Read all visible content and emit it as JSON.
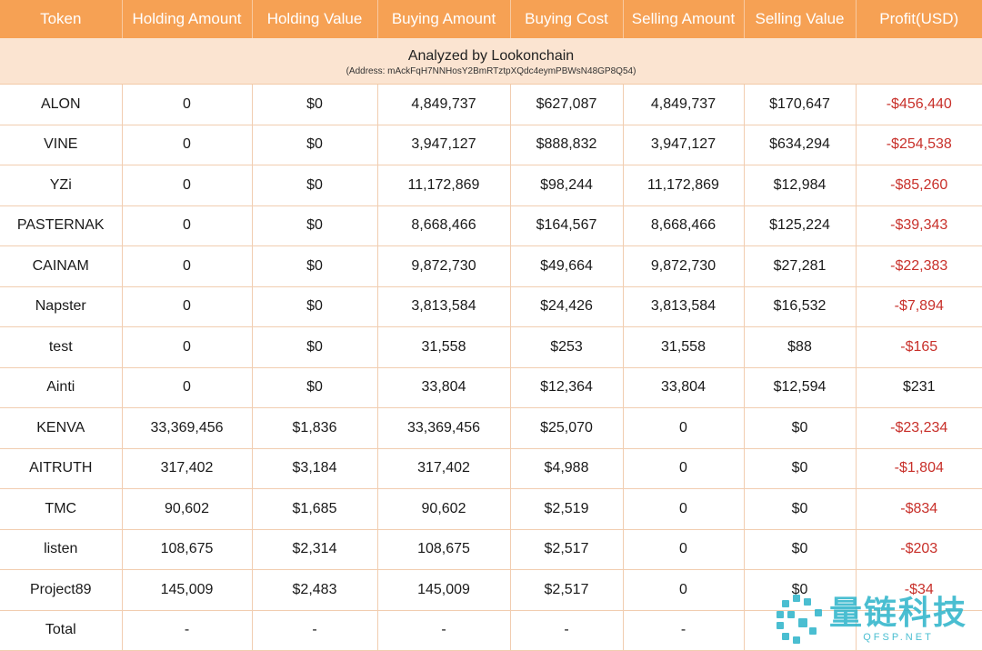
{
  "headers": [
    "Token",
    "Holding Amount",
    "Holding Value",
    "Buying Amount",
    "Buying Cost",
    "Selling Amount",
    "Selling Value",
    "Profit(USD)"
  ],
  "banner": {
    "title": "Analyzed by Lookonchain",
    "address": "(Address: mAckFqH7NNHosY2BmRTztpXQdc4eymPBWsN48GP8Q54)"
  },
  "rows": [
    {
      "token": "ALON",
      "holding_amount": "0",
      "holding_value": "$0",
      "buying_amount": "4,849,737",
      "buying_cost": "$627,087",
      "selling_amount": "4,849,737",
      "selling_value": "$170,647",
      "profit": "-$456,440"
    },
    {
      "token": "VINE",
      "holding_amount": "0",
      "holding_value": "$0",
      "buying_amount": "3,947,127",
      "buying_cost": "$888,832",
      "selling_amount": "3,947,127",
      "selling_value": "$634,294",
      "profit": "-$254,538"
    },
    {
      "token": "YZi",
      "holding_amount": "0",
      "holding_value": "$0",
      "buying_amount": "11,172,869",
      "buying_cost": "$98,244",
      "selling_amount": "11,172,869",
      "selling_value": "$12,984",
      "profit": "-$85,260"
    },
    {
      "token": "PASTERNAK",
      "holding_amount": "0",
      "holding_value": "$0",
      "buying_amount": "8,668,466",
      "buying_cost": "$164,567",
      "selling_amount": "8,668,466",
      "selling_value": "$125,224",
      "profit": "-$39,343"
    },
    {
      "token": "CAINAM",
      "holding_amount": "0",
      "holding_value": "$0",
      "buying_amount": "9,872,730",
      "buying_cost": "$49,664",
      "selling_amount": "9,872,730",
      "selling_value": "$27,281",
      "profit": "-$22,383"
    },
    {
      "token": "Napster",
      "holding_amount": "0",
      "holding_value": "$0",
      "buying_amount": "3,813,584",
      "buying_cost": "$24,426",
      "selling_amount": "3,813,584",
      "selling_value": "$16,532",
      "profit": "-$7,894"
    },
    {
      "token": "test",
      "holding_amount": "0",
      "holding_value": "$0",
      "buying_amount": "31,558",
      "buying_cost": "$253",
      "selling_amount": "31,558",
      "selling_value": "$88",
      "profit": "-$165"
    },
    {
      "token": "Ainti",
      "holding_amount": "0",
      "holding_value": "$0",
      "buying_amount": "33,804",
      "buying_cost": "$12,364",
      "selling_amount": "33,804",
      "selling_value": "$12,594",
      "profit": "$231"
    },
    {
      "token": "KENVA",
      "holding_amount": "33,369,456",
      "holding_value": "$1,836",
      "buying_amount": "33,369,456",
      "buying_cost": "$25,070",
      "selling_amount": "0",
      "selling_value": "$0",
      "profit": "-$23,234"
    },
    {
      "token": "AITRUTH",
      "holding_amount": "317,402",
      "holding_value": "$3,184",
      "buying_amount": "317,402",
      "buying_cost": "$4,988",
      "selling_amount": "0",
      "selling_value": "$0",
      "profit": "-$1,804"
    },
    {
      "token": "TMC",
      "holding_amount": "90,602",
      "holding_value": "$1,685",
      "buying_amount": "90,602",
      "buying_cost": "$2,519",
      "selling_amount": "0",
      "selling_value": "$0",
      "profit": "-$834"
    },
    {
      "token": "listen",
      "holding_amount": "108,675",
      "holding_value": "$2,314",
      "buying_amount": "108,675",
      "buying_cost": "$2,517",
      "selling_amount": "0",
      "selling_value": "$0",
      "profit": "-$203"
    },
    {
      "token": "Project89",
      "holding_amount": "145,009",
      "holding_value": "$2,483",
      "buying_amount": "145,009",
      "buying_cost": "$2,517",
      "selling_amount": "0",
      "selling_value": "$0",
      "profit": "-$34"
    },
    {
      "token": "Total",
      "holding_amount": "-",
      "holding_value": "-",
      "buying_amount": "-",
      "buying_cost": "-",
      "selling_amount": "-",
      "selling_value": "",
      "profit": ""
    }
  ],
  "colors": {
    "header_bg": "#f6a154",
    "banner_bg": "#fbe4d1",
    "negative": "#c8302a",
    "watermark": "#2bb3c9"
  },
  "watermark": {
    "text_cn": "量链科技",
    "text_en": "QFSP.NET",
    "icon": "qfsp-logo-icon"
  }
}
